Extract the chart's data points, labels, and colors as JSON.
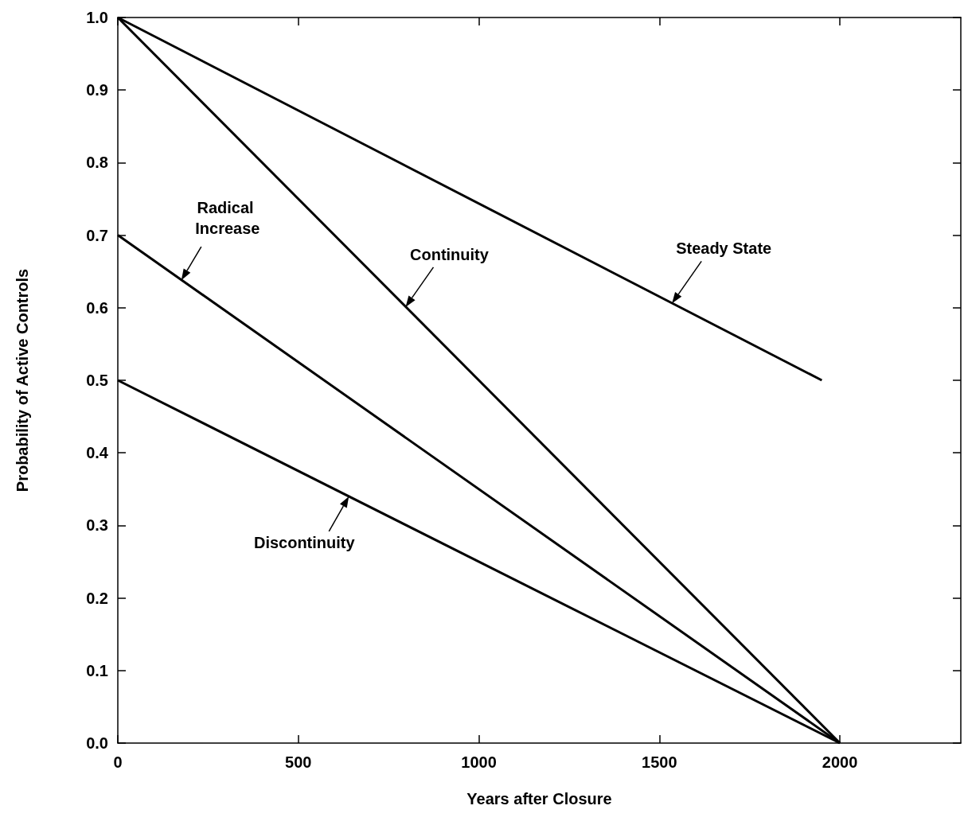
{
  "chart_data": {
    "type": "line",
    "xlabel": "Years after Closure",
    "ylabel": "Probability of Active Controls",
    "xlim": [
      0,
      2335
    ],
    "xticks": [
      0,
      500,
      1000,
      1500,
      2000
    ],
    "ylim": [
      0,
      1
    ],
    "yticks": [
      {
        "value": 0,
        "label": "0.0"
      },
      0.1,
      0.2,
      0.3,
      0.4,
      0.5,
      0.6,
      0.7,
      0.8,
      0.9,
      {
        "value": 1,
        "label": "1.0"
      }
    ],
    "tick_labels": true,
    "grid": false,
    "marker": "none",
    "line_style": "solid",
    "series": [
      {
        "color": "#000000",
        "x": [
          0,
          1950
        ],
        "values": [
          1.0,
          0.5
        ]
      },
      {
        "color": "#000000",
        "x": [
          0,
          2000
        ],
        "values": [
          1.0,
          0.0
        ]
      },
      {
        "color": "#000000",
        "x": [
          0,
          2000
        ],
        "values": [
          0.7,
          0.0
        ]
      },
      {
        "color": "#000000",
        "x": [
          0,
          2000
        ],
        "values": [
          0.5,
          0.0
        ]
      }
    ],
    "annotations": [
      {
        "text": "Radical Increase",
        "x": 176,
        "y": 0.638
      },
      {
        "text": "Continuity",
        "x": 797,
        "y": 0.601
      },
      {
        "text": "Steady State",
        "x": 1535,
        "y": 0.606
      },
      {
        "text": "Discontinuity",
        "x": 640,
        "y": 0.34
      }
    ]
  }
}
